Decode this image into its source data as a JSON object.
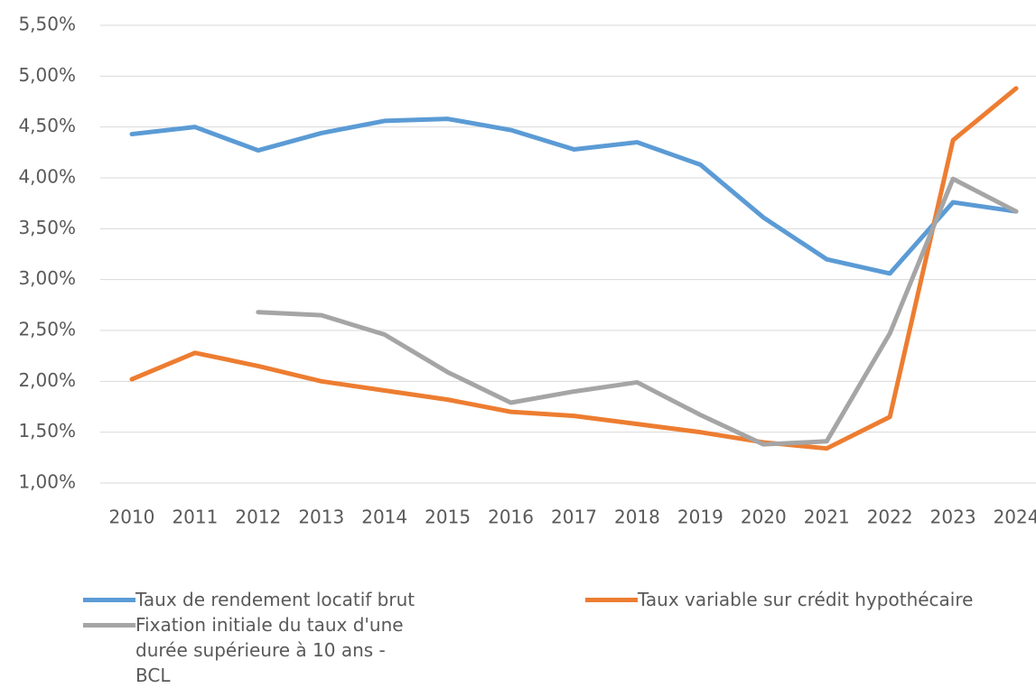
{
  "chart_data": {
    "type": "line",
    "categories": [
      "2010",
      "2011",
      "2012",
      "2013",
      "2014",
      "2015",
      "2016",
      "2017",
      "2018",
      "2019",
      "2020",
      "2021",
      "2022",
      "2023",
      "2024"
    ],
    "series": [
      {
        "name": "Taux de rendement locatif brut",
        "color": "#5b9bd5",
        "values": [
          4.43,
          4.5,
          4.27,
          4.44,
          4.56,
          4.58,
          4.47,
          4.28,
          4.35,
          4.13,
          3.61,
          3.2,
          3.06,
          3.76,
          3.67
        ]
      },
      {
        "name": "Taux variable sur crédit hypothécaire",
        "color": "#ed7d31",
        "values": [
          2.02,
          2.28,
          2.15,
          2.0,
          1.91,
          1.82,
          1.7,
          1.66,
          1.58,
          1.5,
          1.4,
          1.34,
          1.65,
          4.37,
          4.88
        ]
      },
      {
        "name": "Fixation initiale du taux d'une durée supérieure à 10 ans - BCL",
        "color": "#a5a5a5",
        "values": [
          null,
          null,
          2.68,
          2.65,
          2.46,
          2.09,
          1.79,
          1.9,
          1.99,
          1.67,
          1.38,
          1.41,
          2.47,
          3.99,
          3.67
        ]
      }
    ],
    "ylim": [
      1,
      5.5
    ],
    "yticks": [
      {
        "value": 1,
        "label": "1,00%"
      },
      {
        "value": 1.5,
        "label": "1,50%"
      },
      {
        "value": 2,
        "label": "2,00%"
      },
      {
        "value": 2.5,
        "label": "2,50%"
      },
      {
        "value": 3,
        "label": "3,00%"
      },
      {
        "value": 3.5,
        "label": "3,50%"
      },
      {
        "value": 4,
        "label": "4,00%"
      },
      {
        "value": 4.5,
        "label": "4,50%"
      },
      {
        "value": 5,
        "label": "5,00%"
      },
      {
        "value": 5.5,
        "label": "5,50%"
      }
    ],
    "grid": true
  }
}
